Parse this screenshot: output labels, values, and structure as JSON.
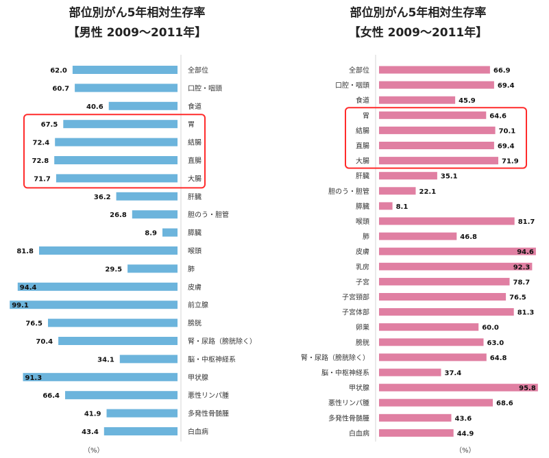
{
  "colors": {
    "male_bar": "#6cb4dc",
    "female_bar": "#e07fa2",
    "highlight_box": "#ff2a2a",
    "divider": "#d6d6d6"
  },
  "chart_data": [
    {
      "type": "bar",
      "orientation": "horizontal",
      "title_line1": "部位別がん5年相対生存率",
      "title_line2": "【男性 2009〜2011年】",
      "unit_label": "（%）",
      "xlim": [
        0,
        100
      ],
      "categories": [
        "全部位",
        "口腔・咽頭",
        "食道",
        "胃",
        "結腸",
        "直腸",
        "大腸",
        "肝臓",
        "胆のう・胆管",
        "膵臓",
        "喉頭",
        "肺",
        "皮膚",
        "前立腺",
        "膀胱",
        "腎・尿路（膀胱除く）",
        "脳・中枢神経系",
        "甲状腺",
        "悪性リンパ腫",
        "多発性骨髄腫",
        "白血病"
      ],
      "values": [
        62.0,
        60.7,
        40.6,
        67.5,
        72.4,
        72.8,
        71.7,
        36.2,
        26.8,
        8.9,
        81.8,
        29.5,
        94.4,
        99.1,
        76.5,
        70.4,
        34.1,
        91.3,
        66.4,
        41.9,
        43.4
      ],
      "value_labels": [
        "62.0",
        "60.7",
        "40.6",
        "67.5",
        "72.4",
        "72.8",
        "71.7",
        "36.2",
        "26.8",
        "8.9",
        "81.8",
        "29.5",
        "94.4",
        "99.1",
        "76.5",
        "70.4",
        "34.1",
        "91.3",
        "66.4",
        "41.9",
        "43.4"
      ],
      "highlighted": [
        "胃",
        "結腸",
        "直腸",
        "大腸"
      ]
    },
    {
      "type": "bar",
      "orientation": "horizontal",
      "title_line1": "部位別がん5年相対生存率",
      "title_line2": "【女性 2009〜2011年】",
      "unit_label": "（%）",
      "xlim": [
        0,
        100
      ],
      "categories": [
        "全部位",
        "口腔・咽頭",
        "食道",
        "胃",
        "結腸",
        "直腸",
        "大腸",
        "肝臓",
        "胆のう・胆管",
        "膵臓",
        "喉頭",
        "肺",
        "皮膚",
        "乳房",
        "子宮",
        "子宮頸部",
        "子宮体部",
        "卵巣",
        "膀胱",
        "腎・尿路（膀胱除く）",
        "脳・中枢神経系",
        "甲状腺",
        "悪性リンパ腫",
        "多発性骨髄腫",
        "白血病"
      ],
      "values": [
        66.9,
        69.4,
        45.9,
        64.6,
        70.1,
        69.4,
        71.9,
        35.1,
        22.1,
        8.1,
        81.7,
        46.8,
        94.6,
        92.3,
        78.7,
        76.5,
        81.3,
        60.0,
        63.0,
        64.8,
        37.4,
        95.8,
        68.6,
        43.6,
        44.9
      ],
      "value_labels": [
        "66.9",
        "69.4",
        "45.9",
        "64.6",
        "70.1",
        "69.4",
        "71.9",
        "35.1",
        "22.1",
        "8.1",
        "81.7",
        "46.8",
        "94.6",
        "92.3",
        "78.7",
        "76.5",
        "81.3",
        "60.0",
        "63.0",
        "64.8",
        "37.4",
        "95.8",
        "68.6",
        "43.6",
        "44.9"
      ],
      "highlighted": [
        "胃",
        "結腸",
        "直腸",
        "大腸"
      ]
    }
  ]
}
